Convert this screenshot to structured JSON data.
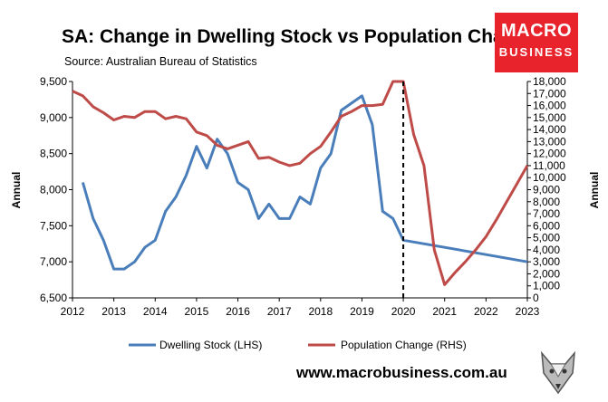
{
  "header": {
    "title": "SA: Change in Dwelling Stock vs Population Change",
    "source": "Source: Australian Bureau of Statistics"
  },
  "logo": {
    "line1": "MACRO",
    "line2": "BUSINESS"
  },
  "footer": {
    "url": "www.macrobusiness.com.au"
  },
  "colors": {
    "dwelling": "#4a7ebb",
    "population": "#be4b48",
    "logo_bg": "#e8232c"
  },
  "chart_data": {
    "type": "line",
    "title": "SA: Change in Dwelling Stock vs Population Change",
    "x_ticks": [
      2012,
      2013,
      2014,
      2015,
      2016,
      2017,
      2018,
      2019,
      2020,
      2021,
      2022,
      2023
    ],
    "xlim": [
      2012,
      2023
    ],
    "y_left": {
      "label": "Annual",
      "lim": [
        6500,
        9500
      ],
      "ticks": [
        "6,500",
        "7,000",
        "7,500",
        "8,000",
        "8,500",
        "9,000",
        "9,500"
      ]
    },
    "y_right": {
      "label": "Annual",
      "lim": [
        0,
        18000
      ],
      "ticks": [
        "0",
        "1,000",
        "2,000",
        "3,000",
        "4,000",
        "5,000",
        "6,000",
        "7,000",
        "8,000",
        "9,000",
        "10,000",
        "11,000",
        "12,000",
        "13,000",
        "14,000",
        "15,000",
        "16,000",
        "17,000",
        "18,000"
      ]
    },
    "vline_x": 2020,
    "grid": false,
    "legend_position": "bottom",
    "series": [
      {
        "name": "Dwelling Stock (LHS)",
        "axis": "left",
        "x": [
          2012.25,
          2012.5,
          2012.75,
          2013.0,
          2013.25,
          2013.5,
          2013.75,
          2014.0,
          2014.25,
          2014.5,
          2014.75,
          2015.0,
          2015.25,
          2015.5,
          2015.75,
          2016.0,
          2016.25,
          2016.5,
          2016.75,
          2017.0,
          2017.25,
          2017.5,
          2017.75,
          2018.0,
          2018.25,
          2018.5,
          2018.75,
          2019.0,
          2019.25,
          2019.5,
          2019.75,
          2020.0,
          2021.0,
          2022.0,
          2023.0
        ],
        "values": [
          8100,
          7600,
          7300,
          6900,
          6900,
          7000,
          7200,
          7300,
          7700,
          7900,
          8200,
          8600,
          8300,
          8700,
          8500,
          8100,
          8000,
          7600,
          7800,
          7600,
          7600,
          7900,
          7800,
          8300,
          8500,
          9100,
          9200,
          9300,
          8900,
          7700,
          7600,
          7300,
          7200,
          7100,
          7000
        ]
      },
      {
        "name": "Population Change (RHS)",
        "axis": "right",
        "x": [
          2012.0,
          2012.25,
          2012.5,
          2012.75,
          2013.0,
          2013.25,
          2013.5,
          2013.75,
          2014.0,
          2014.25,
          2014.5,
          2014.75,
          2015.0,
          2015.25,
          2015.5,
          2015.75,
          2016.0,
          2016.25,
          2016.5,
          2016.75,
          2017.0,
          2017.25,
          2017.5,
          2017.75,
          2018.0,
          2018.25,
          2018.5,
          2018.75,
          2019.0,
          2019.25,
          2019.5,
          2019.75,
          2020.0,
          2020.25,
          2020.5,
          2020.75,
          2021.0,
          2021.25,
          2021.5,
          2021.75,
          2022.0,
          2022.25,
          2022.5,
          2022.75,
          2023.0
        ],
        "values": [
          17200,
          16800,
          15900,
          15400,
          14800,
          15100,
          15000,
          15500,
          15500,
          14900,
          15100,
          14900,
          13800,
          13500,
          12700,
          12400,
          12700,
          13000,
          11600,
          11700,
          11300,
          11000,
          11200,
          12000,
          12600,
          13800,
          15100,
          15500,
          16000,
          16000,
          16100,
          18000,
          18000,
          13600,
          11000,
          4000,
          1100,
          2100,
          3000,
          4000,
          5100,
          6500,
          8000,
          9500,
          11000
        ]
      }
    ]
  }
}
